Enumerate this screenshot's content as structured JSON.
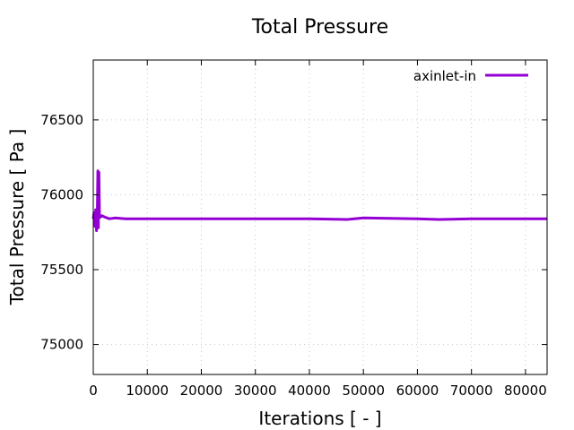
{
  "chart_data": {
    "type": "line",
    "title": "Total Pressure",
    "xlabel": "Iterations [ - ]",
    "ylabel": "Total Pressure [ Pa ]",
    "xlim": [
      0,
      84000
    ],
    "ylim": [
      74800,
      76900
    ],
    "xticks": [
      0,
      10000,
      20000,
      30000,
      40000,
      50000,
      60000,
      70000,
      80000
    ],
    "xtick_labels": [
      "0",
      "10000",
      "20000",
      "30000",
      "40000",
      "50000",
      "60000",
      "70000",
      "80000"
    ],
    "yticks": [
      75000,
      75500,
      76000,
      76500
    ],
    "ytick_labels": [
      "75000",
      "75500",
      "76000",
      "76500"
    ],
    "grid": true,
    "legend_position": "top-right",
    "series": [
      {
        "name": "axinlet-in",
        "color": "#9400d3",
        "x": [
          0,
          150,
          300,
          450,
          600,
          750,
          850,
          950,
          1050,
          1150,
          1300,
          1600,
          2200,
          3000,
          4000,
          6000,
          10000,
          20000,
          30000,
          40000,
          47000,
          50000,
          60000,
          64000,
          70000,
          80000,
          84000
        ],
        "y": [
          75840,
          75880,
          75790,
          75900,
          75760,
          75870,
          76160,
          75780,
          76150,
          75870,
          75850,
          75860,
          75850,
          75840,
          75845,
          75840,
          75840,
          75840,
          75840,
          75840,
          75835,
          75845,
          75840,
          75835,
          75840,
          75840,
          75840
        ]
      }
    ]
  }
}
